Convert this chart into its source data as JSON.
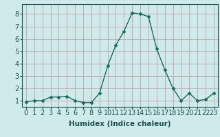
{
  "x": [
    0,
    1,
    2,
    3,
    4,
    5,
    6,
    7,
    8,
    9,
    10,
    11,
    12,
    13,
    14,
    15,
    16,
    17,
    18,
    19,
    20,
    21,
    22,
    23
  ],
  "y": [
    0.9,
    1.0,
    1.0,
    1.3,
    1.3,
    1.35,
    1.0,
    0.85,
    0.85,
    1.6,
    3.8,
    5.5,
    6.6,
    8.1,
    8.0,
    7.8,
    5.2,
    3.5,
    2.0,
    1.0,
    1.6,
    1.0,
    1.1,
    1.6
  ],
  "line_color": "#1a6b5a",
  "marker": "D",
  "marker_size": 2.5,
  "bg_color": "#ceeaea",
  "grid_color": "#aed4d4",
  "grid_color_major": "#c0a0a0",
  "xlabel": "Humidex (Indice chaleur)",
  "xlim": [
    -0.5,
    23.5
  ],
  "ylim": [
    0.5,
    8.8
  ],
  "yticks": [
    1,
    2,
    3,
    4,
    5,
    6,
    7,
    8
  ],
  "xticks": [
    0,
    1,
    2,
    3,
    4,
    5,
    6,
    7,
    8,
    9,
    10,
    11,
    12,
    13,
    14,
    15,
    16,
    17,
    18,
    19,
    20,
    21,
    22,
    23
  ],
  "xlabel_fontsize": 7.5,
  "tick_fontsize": 7,
  "line_width": 1.0,
  "text_color": "#1a5050",
  "spine_color": "#1a5050"
}
